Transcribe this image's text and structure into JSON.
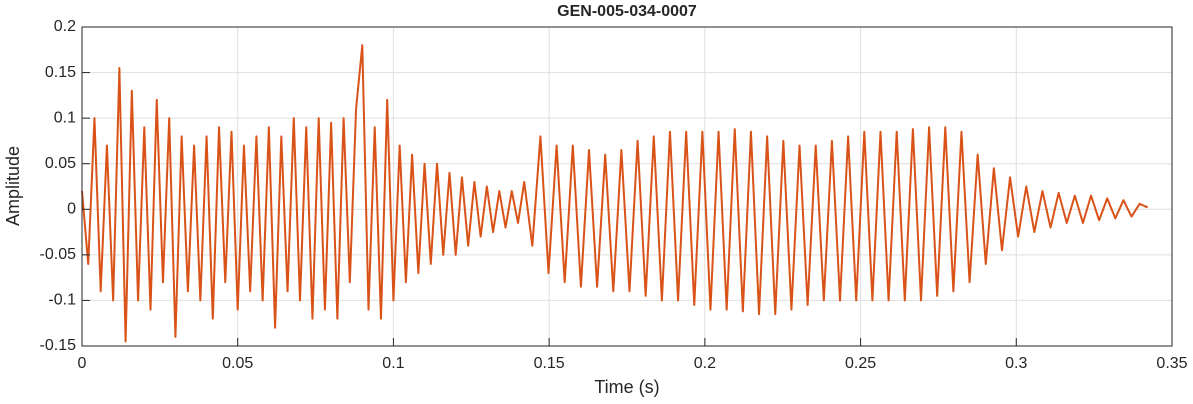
{
  "chart_data": {
    "type": "line",
    "title": "GEN-005-034-0007",
    "x_label": "Time (s)",
    "y_label": "Amplitude",
    "xlim": [
      0,
      0.35
    ],
    "xticks": [
      0,
      0.05,
      0.1,
      0.15,
      0.2,
      0.25,
      0.3,
      0.35
    ],
    "ylim": [
      -0.15,
      0.2
    ],
    "yticks": [
      -0.15,
      -0.1,
      -0.05,
      0,
      0.05,
      0.1,
      0.15,
      0.2
    ],
    "grid": true,
    "series": [
      {
        "name": "Amplitude",
        "color": "#d95319",
        "x": [
          0,
          0.002,
          0.004,
          0.006,
          0.008,
          0.01,
          0.012,
          0.014,
          0.016,
          0.018,
          0.02,
          0.022,
          0.024,
          0.026,
          0.028,
          0.03,
          0.032,
          0.034,
          0.036,
          0.038,
          0.04,
          0.042,
          0.044,
          0.046,
          0.048,
          0.05,
          0.052,
          0.054,
          0.056,
          0.058,
          0.06,
          0.062,
          0.064,
          0.066,
          0.068,
          0.07,
          0.072,
          0.074,
          0.076,
          0.078,
          0.08,
          0.082,
          0.084,
          0.086,
          0.088,
          0.09,
          0.092,
          0.094,
          0.096,
          0.098,
          0.1,
          0.102,
          0.104,
          0.106,
          0.108,
          0.11,
          0.112,
          0.114,
          0.116,
          0.118,
          0.12,
          0.122,
          0.124,
          0.126,
          0.128,
          0.13,
          0.132,
          0.134,
          0.136,
          0.138,
          0.14,
          0.142,
          0.1446,
          0.1472,
          0.1498,
          0.1524,
          0.155,
          0.1576,
          0.1602,
          0.1628,
          0.1654,
          0.168,
          0.1706,
          0.1732,
          0.1758,
          0.1784,
          0.181,
          0.1836,
          0.1862,
          0.1888,
          0.1914,
          0.194,
          0.1966,
          0.1992,
          0.2018,
          0.2044,
          0.207,
          0.2096,
          0.2122,
          0.2148,
          0.2174,
          0.22,
          0.2226,
          0.2252,
          0.2278,
          0.2304,
          0.233,
          0.2356,
          0.2382,
          0.2408,
          0.2434,
          0.246,
          0.2486,
          0.2512,
          0.2538,
          0.2564,
          0.259,
          0.2616,
          0.2642,
          0.2668,
          0.2694,
          0.272,
          0.2746,
          0.2772,
          0.2798,
          0.2824,
          0.285,
          0.2876,
          0.2902,
          0.2928,
          0.2954,
          0.298,
          0.3006,
          0.3032,
          0.3058,
          0.3084,
          0.311,
          0.3136,
          0.3162,
          0.3188,
          0.3214,
          0.324,
          0.3266,
          0.3292,
          0.3318,
          0.3344,
          0.337,
          0.3396,
          0.3422
        ],
        "values": [
          0.02,
          -0.06,
          0.1,
          -0.09,
          0.07,
          -0.1,
          0.155,
          -0.145,
          0.13,
          -0.1,
          0.09,
          -0.11,
          0.12,
          -0.08,
          0.1,
          -0.14,
          0.08,
          -0.09,
          0.07,
          -0.1,
          0.08,
          -0.12,
          0.09,
          -0.08,
          0.085,
          -0.11,
          0.07,
          -0.09,
          0.08,
          -0.1,
          0.09,
          -0.13,
          0.08,
          -0.09,
          0.1,
          -0.1,
          0.09,
          -0.12,
          0.1,
          -0.11,
          0.095,
          -0.12,
          0.1,
          -0.08,
          0.11,
          0.18,
          -0.11,
          0.09,
          -0.12,
          0.12,
          -0.1,
          0.07,
          -0.08,
          0.06,
          -0.07,
          0.05,
          -0.06,
          0.05,
          -0.05,
          0.04,
          -0.05,
          0.035,
          -0.04,
          0.03,
          -0.03,
          0.025,
          -0.025,
          0.02,
          -0.02,
          0.02,
          -0.015,
          0.03,
          -0.04,
          0.08,
          -0.07,
          0.07,
          -0.08,
          0.07,
          -0.085,
          0.065,
          -0.085,
          0.06,
          -0.09,
          0.065,
          -0.09,
          0.075,
          -0.095,
          0.08,
          -0.1,
          0.085,
          -0.1,
          0.085,
          -0.105,
          0.085,
          -0.11,
          0.085,
          -0.11,
          0.088,
          -0.112,
          0.085,
          -0.115,
          0.08,
          -0.115,
          0.075,
          -0.11,
          0.07,
          -0.105,
          0.07,
          -0.1,
          0.075,
          -0.1,
          0.08,
          -0.1,
          0.085,
          -0.1,
          0.085,
          -0.1,
          0.085,
          -0.1,
          0.088,
          -0.1,
          0.09,
          -0.095,
          0.09,
          -0.09,
          0.085,
          -0.08,
          0.06,
          -0.06,
          0.045,
          -0.045,
          0.035,
          -0.03,
          0.025,
          -0.025,
          0.02,
          -0.02,
          0.018,
          -0.015,
          0.015,
          -0.015,
          0.015,
          -0.012,
          0.012,
          -0.01,
          0.01,
          -0.008,
          0.006,
          0.002
        ]
      }
    ]
  }
}
